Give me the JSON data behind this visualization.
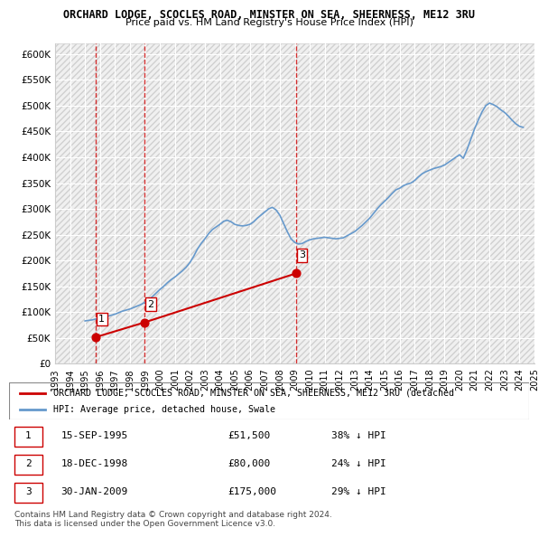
{
  "title": "ORCHARD LODGE, SCOCLES ROAD, MINSTER ON SEA, SHEERNESS, ME12 3RU",
  "subtitle": "Price paid vs. HM Land Registry's House Price Index (HPI)",
  "ylim": [
    0,
    620000
  ],
  "yticks": [
    0,
    50000,
    100000,
    150000,
    200000,
    250000,
    300000,
    350000,
    400000,
    450000,
    500000,
    550000,
    600000
  ],
  "ylabel_format": "£{0}K",
  "background_color": "#ffffff",
  "grid_color": "#cccccc",
  "hatch_color": "#e8e8e8",
  "sale_color": "#cc0000",
  "hpi_color": "#6699cc",
  "vline_color": "#cc0000",
  "sales": [
    {
      "date_num": 1995.71,
      "price": 51500,
      "label": "1"
    },
    {
      "date_num": 1998.96,
      "price": 80000,
      "label": "2"
    },
    {
      "date_num": 2009.08,
      "price": 175000,
      "label": "3"
    }
  ],
  "table_rows": [
    {
      "num": "1",
      "date": "15-SEP-1995",
      "price": "£51,500",
      "change": "38% ↓ HPI"
    },
    {
      "num": "2",
      "date": "18-DEC-1998",
      "price": "£80,000",
      "change": "24% ↓ HPI"
    },
    {
      "num": "3",
      "date": "30-JAN-2009",
      "price": "£175,000",
      "change": "29% ↓ HPI"
    }
  ],
  "legend_line1": "ORCHARD LODGE, SCOCLES ROAD, MINSTER ON SEA, SHEERNESS, ME12 3RU (detached",
  "legend_line2": "HPI: Average price, detached house, Swale",
  "footnote": "Contains HM Land Registry data © Crown copyright and database right 2024.\nThis data is licensed under the Open Government Licence v3.0.",
  "hpi_data_x": [
    1995.0,
    1995.25,
    1995.5,
    1995.75,
    1996.0,
    1996.25,
    1996.5,
    1996.75,
    1997.0,
    1997.25,
    1997.5,
    1997.75,
    1998.0,
    1998.25,
    1998.5,
    1998.75,
    1999.0,
    1999.25,
    1999.5,
    1999.75,
    2000.0,
    2000.25,
    2000.5,
    2000.75,
    2001.0,
    2001.25,
    2001.5,
    2001.75,
    2002.0,
    2002.25,
    2002.5,
    2002.75,
    2003.0,
    2003.25,
    2003.5,
    2003.75,
    2004.0,
    2004.25,
    2004.5,
    2004.75,
    2005.0,
    2005.25,
    2005.5,
    2005.75,
    2006.0,
    2006.25,
    2006.5,
    2006.75,
    2007.0,
    2007.25,
    2007.5,
    2007.75,
    2008.0,
    2008.25,
    2008.5,
    2008.75,
    2009.0,
    2009.25,
    2009.5,
    2009.75,
    2010.0,
    2010.25,
    2010.5,
    2010.75,
    2011.0,
    2011.25,
    2011.5,
    2011.75,
    2012.0,
    2012.25,
    2012.5,
    2012.75,
    2013.0,
    2013.25,
    2013.5,
    2013.75,
    2014.0,
    2014.25,
    2014.5,
    2014.75,
    2015.0,
    2015.25,
    2015.5,
    2015.75,
    2016.0,
    2016.25,
    2016.5,
    2016.75,
    2017.0,
    2017.25,
    2017.5,
    2017.75,
    2018.0,
    2018.25,
    2018.5,
    2018.75,
    2019.0,
    2019.25,
    2019.5,
    2019.75,
    2020.0,
    2020.25,
    2020.5,
    2020.75,
    2021.0,
    2021.25,
    2021.5,
    2021.75,
    2022.0,
    2022.25,
    2022.5,
    2022.75,
    2023.0,
    2023.25,
    2023.5,
    2023.75,
    2024.0,
    2024.25
  ],
  "hpi_data_y": [
    83000,
    84000,
    85000,
    87000,
    88000,
    90000,
    92000,
    94000,
    96000,
    99000,
    102000,
    104000,
    106000,
    109000,
    112000,
    115000,
    119000,
    124000,
    130000,
    137000,
    144000,
    150000,
    157000,
    163000,
    168000,
    174000,
    180000,
    187000,
    196000,
    208000,
    222000,
    233000,
    242000,
    252000,
    260000,
    265000,
    270000,
    276000,
    278000,
    275000,
    270000,
    268000,
    267000,
    268000,
    270000,
    275000,
    282000,
    288000,
    294000,
    300000,
    303000,
    298000,
    288000,
    272000,
    256000,
    242000,
    235000,
    232000,
    233000,
    237000,
    240000,
    242000,
    243000,
    244000,
    245000,
    244000,
    243000,
    242000,
    243000,
    244000,
    248000,
    252000,
    256000,
    262000,
    268000,
    275000,
    282000,
    291000,
    300000,
    308000,
    315000,
    322000,
    330000,
    337000,
    340000,
    345000,
    348000,
    350000,
    355000,
    362000,
    368000,
    372000,
    375000,
    378000,
    380000,
    382000,
    385000,
    390000,
    395000,
    400000,
    405000,
    398000,
    415000,
    435000,
    455000,
    472000,
    488000,
    500000,
    505000,
    502000,
    498000,
    492000,
    487000,
    480000,
    472000,
    465000,
    460000,
    458000
  ]
}
